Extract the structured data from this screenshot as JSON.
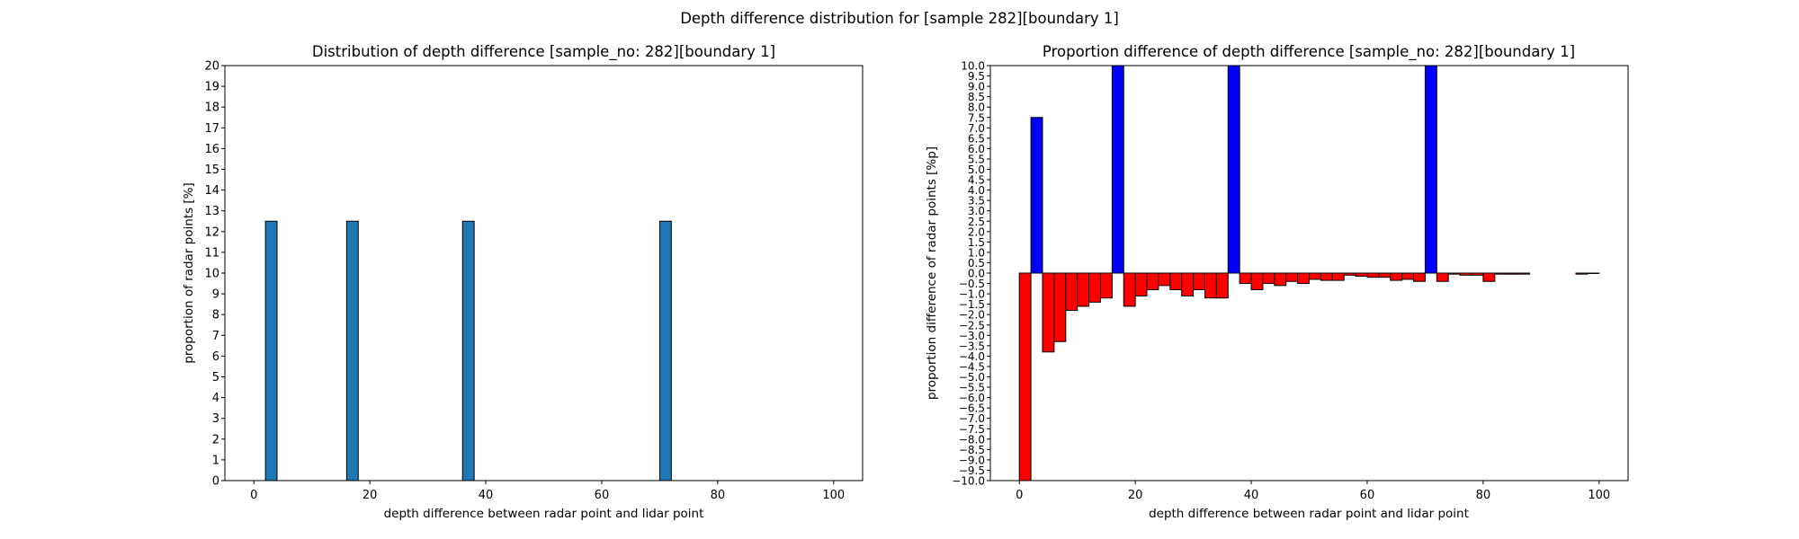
{
  "figure": {
    "suptitle": "Depth difference distribution for [sample 282][boundary 1]"
  },
  "chart_data": [
    {
      "type": "bar",
      "title": "Distribution of depth difference [sample_no: 282][boundary 1]",
      "xlabel": "depth difference between radar point and lidar point",
      "ylabel": "proportion of radar points [%]",
      "xlim": [
        -5,
        105
      ],
      "ylim": [
        0,
        20
      ],
      "xticks": [
        0,
        20,
        40,
        60,
        80,
        100
      ],
      "yticks": [
        0,
        1,
        2,
        3,
        4,
        5,
        6,
        7,
        8,
        9,
        10,
        11,
        12,
        13,
        14,
        15,
        16,
        17,
        18,
        19,
        20
      ],
      "bin_width": 2,
      "bars": [
        {
          "x": 3,
          "value": 12.5
        },
        {
          "x": 17,
          "value": 12.5
        },
        {
          "x": 37,
          "value": 12.5
        },
        {
          "x": 71,
          "value": 12.5
        }
      ],
      "color": "#1f77b4",
      "grid": false
    },
    {
      "type": "bar",
      "title": "Proportion difference of depth difference [sample_no: 282][boundary 1]",
      "xlabel": "depth difference between radar point and lidar point",
      "ylabel": "proportion difference of radar points [%p]",
      "xlim": [
        -5,
        105
      ],
      "ylim": [
        -10,
        10
      ],
      "xticks": [
        0,
        20,
        40,
        60,
        80,
        100
      ],
      "yticks": [
        -10.0,
        -9.5,
        -9.0,
        -8.5,
        -8.0,
        -7.5,
        -7.0,
        -6.5,
        -6.0,
        -5.5,
        -5.0,
        -4.5,
        -4.0,
        -3.5,
        -3.0,
        -2.5,
        -2.0,
        -1.5,
        -1.0,
        -0.5,
        0.0,
        0.5,
        1.0,
        1.5,
        2.0,
        2.5,
        3.0,
        3.5,
        4.0,
        4.5,
        5.0,
        5.5,
        6.0,
        6.5,
        7.0,
        7.5,
        8.0,
        8.5,
        9.0,
        9.5,
        10.0
      ],
      "bin_width": 2,
      "bins": [
        1,
        3,
        5,
        7,
        9,
        11,
        13,
        15,
        17,
        19,
        21,
        23,
        25,
        27,
        29,
        31,
        33,
        35,
        37,
        39,
        41,
        43,
        45,
        47,
        49,
        51,
        53,
        55,
        57,
        59,
        61,
        63,
        65,
        67,
        69,
        71,
        73,
        75,
        77,
        79,
        81,
        83,
        85,
        87,
        89,
        91,
        93,
        95,
        97,
        99
      ],
      "values": [
        -10.5,
        7.5,
        -3.8,
        -3.3,
        -1.8,
        -1.6,
        -1.4,
        -1.2,
        11.3,
        -1.6,
        -1.1,
        -0.8,
        -0.6,
        -0.8,
        -1.1,
        -0.8,
        -1.2,
        -1.2,
        11.3,
        -0.5,
        -0.8,
        -0.5,
        -0.6,
        -0.4,
        -0.5,
        -0.3,
        -0.35,
        -0.35,
        -0.1,
        -0.15,
        -0.2,
        -0.2,
        -0.35,
        -0.3,
        -0.4,
        11.3,
        -0.4,
        -0.05,
        -0.1,
        -0.1,
        -0.4,
        -0.05,
        -0.05,
        -0.05,
        0.0,
        0.0,
        0.0,
        0.0,
        -0.05,
        -0.02
      ],
      "positive_color": "#0000ff",
      "negative_color": "#ff0000",
      "grid": false
    }
  ]
}
